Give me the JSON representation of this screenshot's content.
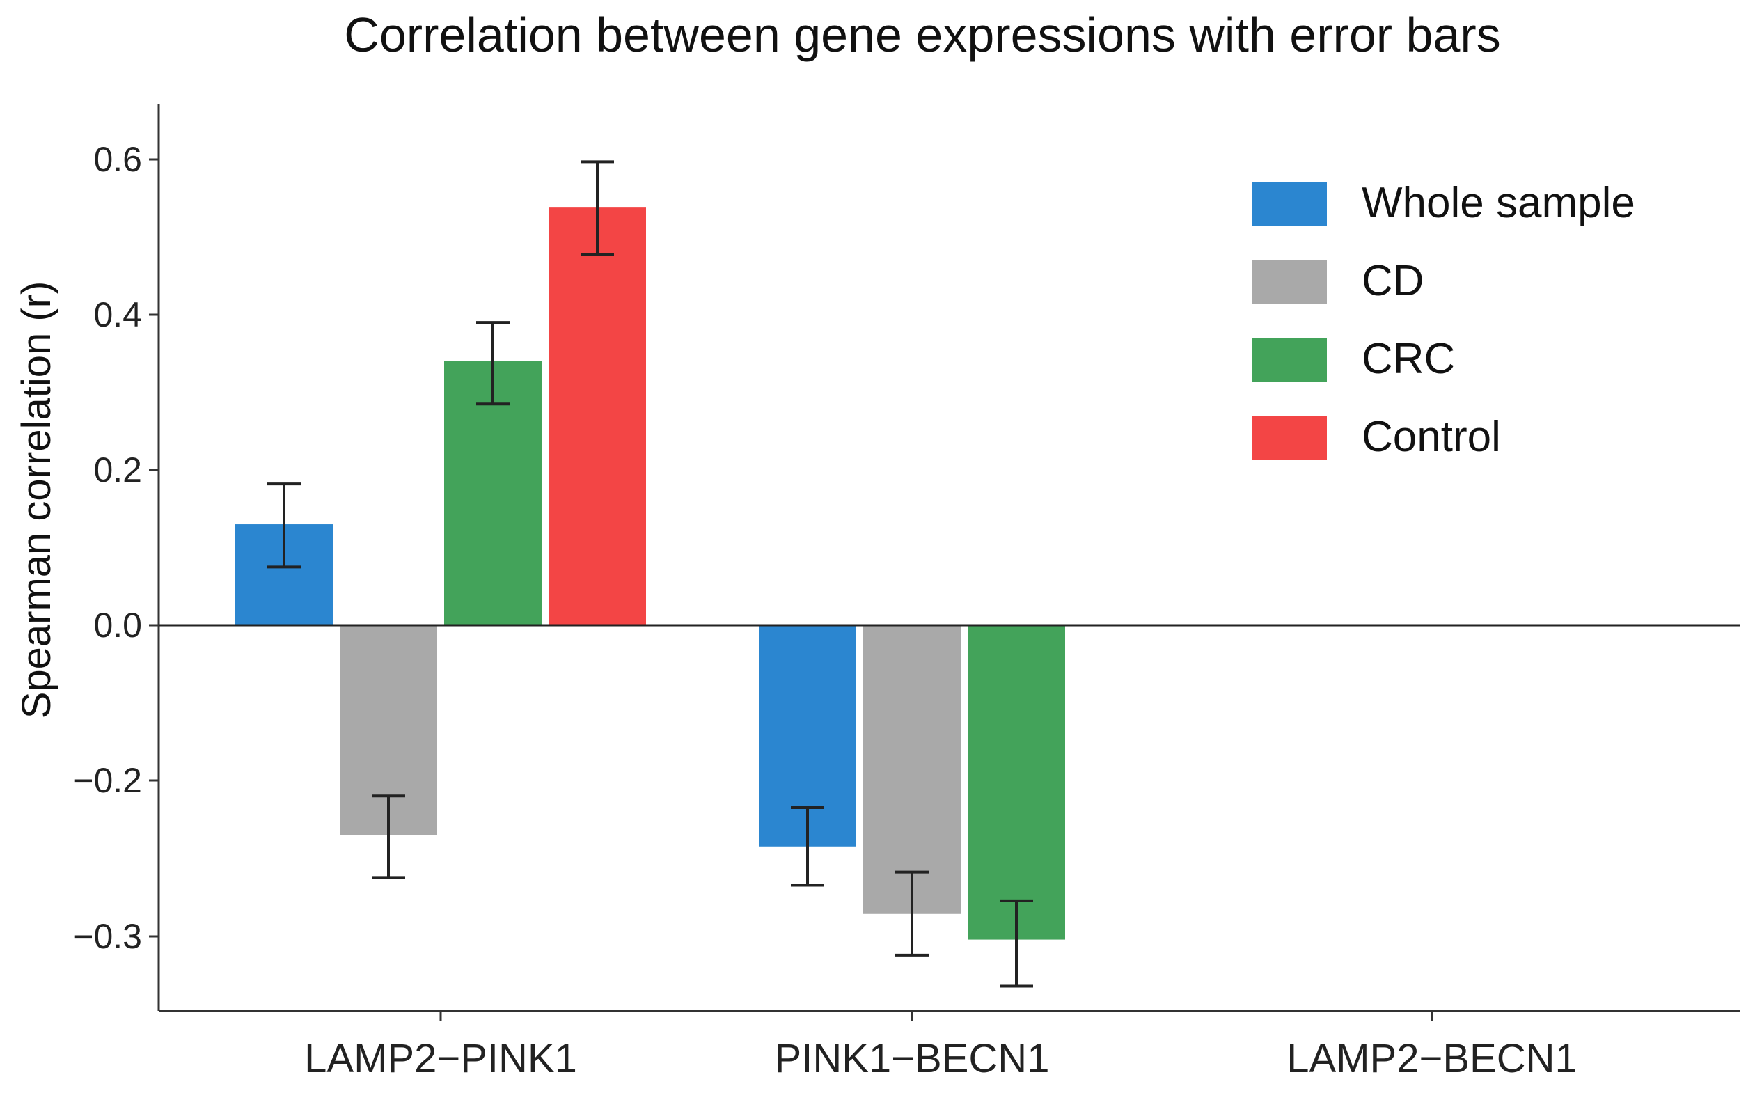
{
  "chart_data": {
    "type": "bar",
    "title": "Correlation between gene expressions with error bars",
    "xlabel": "",
    "ylabel": "Spearman correlation (r)",
    "ylim": [
      -0.5,
      0.64
    ],
    "yticks": [
      0.6,
      0.4,
      0.2,
      0.0,
      -0.2,
      -0.3
    ],
    "ytick_labels": [
      "0.6",
      "0.4",
      "0.2",
      "0.0",
      "−0.2",
      "−0.3"
    ],
    "categories": [
      "LAMP2−PINK1",
      "PINK1−BECN1",
      "LAMP2−BECN1"
    ],
    "legend_position": "top-right",
    "grid": false,
    "series": [
      {
        "name": "Whole sample",
        "color": "#2b86d0",
        "values": [
          0.13,
          -0.285,
          null
        ],
        "err_low": [
          0.075,
          -0.335,
          null
        ],
        "err_high": [
          0.182,
          -0.235,
          null
        ]
      },
      {
        "name": "CD",
        "color": "#a9a9a9",
        "values": [
          -0.27,
          -0.372,
          null
        ],
        "err_low": [
          -0.325,
          -0.425,
          null
        ],
        "err_high": [
          -0.22,
          -0.318,
          null
        ]
      },
      {
        "name": "CRC",
        "color": "#43a35a",
        "values": [
          0.34,
          -0.405,
          null
        ],
        "err_low": [
          0.285,
          -0.465,
          null
        ],
        "err_high": [
          0.39,
          -0.355,
          null
        ]
      },
      {
        "name": "Control",
        "color": "#f34545",
        "values": [
          0.538,
          null,
          null
        ],
        "err_low": [
          0.478,
          null,
          null
        ],
        "err_high": [
          0.597,
          null,
          null
        ]
      }
    ]
  }
}
